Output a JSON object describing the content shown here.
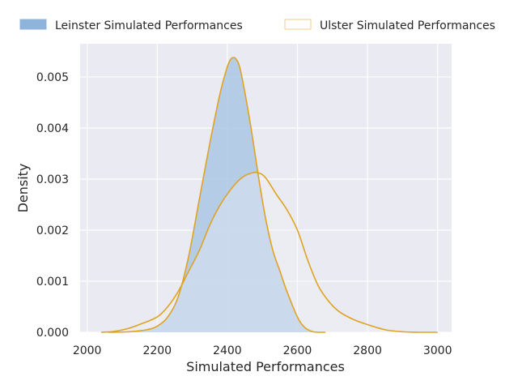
{
  "chart_data": {
    "type": "area",
    "title": "",
    "xlabel": "Simulated Performances",
    "ylabel": "Density",
    "xlim": [
      1980,
      3040
    ],
    "ylim": [
      0,
      0.00565
    ],
    "grid": true,
    "legend_placement": "top",
    "xticks": [
      2000,
      2200,
      2400,
      2600,
      2800,
      3000
    ],
    "yticks": [
      0.0,
      0.001,
      0.002,
      0.003,
      0.004,
      0.005
    ],
    "xtick_labels": [
      "2000",
      "2200",
      "2400",
      "2600",
      "2800",
      "3000"
    ],
    "ytick_labels": [
      "0.000",
      "0.001",
      "0.002",
      "0.003",
      "0.004",
      "0.005"
    ],
    "colors": {
      "background": "#eaeaf2",
      "grid": "#ffffff",
      "leinster_fill": "#a7c4e4",
      "leinster_legend_fill": "#8fb4dc",
      "line": "#e0a321",
      "ulster_fill": "#f2f0f6"
    },
    "series": [
      {
        "name": "Leinster Simulated Performances",
        "filled": true,
        "x": [
          2060,
          2120,
          2170,
          2200,
          2230,
          2260,
          2290,
          2320,
          2350,
          2380,
          2400,
          2410,
          2418,
          2425,
          2435,
          2450,
          2470,
          2490,
          2510,
          2530,
          2550,
          2570,
          2600,
          2620,
          2640,
          2660,
          2680
        ],
        "y": [
          0.0,
          1e-05,
          5e-05,
          0.00012,
          0.0003,
          0.0007,
          0.0015,
          0.0026,
          0.0037,
          0.0047,
          0.0052,
          0.00535,
          0.00538,
          0.00535,
          0.0052,
          0.0047,
          0.0039,
          0.003,
          0.0022,
          0.0016,
          0.0012,
          0.0008,
          0.0003,
          0.0001,
          2e-05,
          0.0,
          0.0
        ]
      },
      {
        "name": "Ulster Simulated Performances",
        "filled": false,
        "x": [
          2040,
          2080,
          2120,
          2160,
          2200,
          2230,
          2260,
          2290,
          2320,
          2350,
          2380,
          2410,
          2440,
          2470,
          2490,
          2510,
          2540,
          2570,
          2600,
          2630,
          2660,
          2690,
          2720,
          2760,
          2800,
          2850,
          2900,
          2950,
          3000
        ],
        "y": [
          0.0,
          2e-05,
          8e-05,
          0.00018,
          0.0003,
          0.0005,
          0.0008,
          0.0012,
          0.0016,
          0.0021,
          0.0025,
          0.0028,
          0.00302,
          0.00312,
          0.00312,
          0.00302,
          0.0027,
          0.0024,
          0.002,
          0.0014,
          0.0009,
          0.0006,
          0.0004,
          0.00025,
          0.00015,
          5e-05,
          1e-05,
          0.0,
          0.0
        ]
      }
    ]
  }
}
